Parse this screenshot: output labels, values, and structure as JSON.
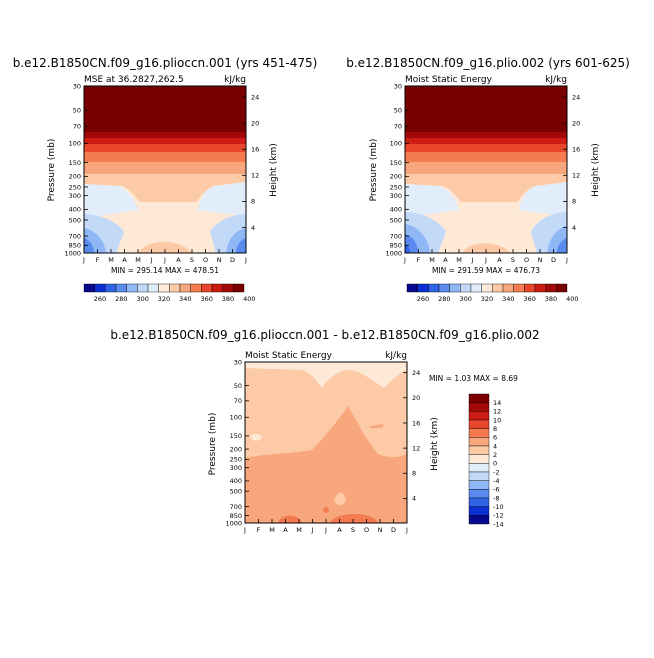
{
  "chart_data": [
    {
      "type": "heatmap",
      "title": "b.e12.B1850CN.f09_g16.plioccn.001 (yrs 451-475)",
      "subtitle_left": "MSE at 36.2827,262.5",
      "subtitle_right": "kJ/kg",
      "ylabel": "Pressure (mb)",
      "ylabel_right": "Height (km)",
      "x_ticklabels": [
        "J",
        "F",
        "M",
        "A",
        "M",
        "J",
        "J",
        "A",
        "S",
        "O",
        "N",
        "D",
        "J"
      ],
      "y_ticklabels": [
        "30",
        "50",
        "70",
        "100",
        "150",
        "200",
        "250",
        "300",
        "400",
        "500",
        "700",
        "850",
        "1000"
      ],
      "y_right_ticklabels": [
        "24",
        "20",
        "16",
        "12",
        "8",
        "4"
      ],
      "stats_text": "MIN = 295.14 MAX = 478.51",
      "colorbar_labels": [
        "260",
        "280",
        "300",
        "320",
        "340",
        "360",
        "380",
        "400"
      ],
      "colors": [
        "#08088a",
        "#0c2fd4",
        "#2f63e8",
        "#5a8cf0",
        "#8fb6f5",
        "#c2d9f8",
        "#e2edfb",
        "#fde9d6",
        "#fccaa6",
        "#f8a67c",
        "#f47a50",
        "#e9472b",
        "#cc1c13",
        "#a10807",
        "#7a0000"
      ]
    },
    {
      "type": "heatmap",
      "title": "b.e12.B1850CN.f09_g16.plio.002 (yrs 601-625)",
      "subtitle_left": "Moist Static Energy",
      "subtitle_right": "kJ/kg",
      "ylabel": "Pressure (mb)",
      "ylabel_right": "Height (km)",
      "x_ticklabels": [
        "J",
        "F",
        "M",
        "A",
        "M",
        "J",
        "J",
        "A",
        "S",
        "O",
        "N",
        "D",
        "J"
      ],
      "y_ticklabels": [
        "30",
        "50",
        "70",
        "100",
        "150",
        "200",
        "250",
        "300",
        "400",
        "500",
        "700",
        "850",
        "1000"
      ],
      "y_right_ticklabels": [
        "24",
        "20",
        "16",
        "12",
        "8",
        "4"
      ],
      "stats_text": "MIN = 291.59 MAX = 476.73",
      "colorbar_labels": [
        "260",
        "280",
        "300",
        "320",
        "340",
        "360",
        "380",
        "400"
      ]
    },
    {
      "type": "heatmap",
      "title": "b.e12.B1850CN.f09_g16.plioccn.001 - b.e12.B1850CN.f09_g16.plio.002",
      "subtitle_left": "Moist Static Energy",
      "subtitle_right": "kJ/kg",
      "ylabel": "Pressure (mb)",
      "ylabel_right": "Height (km)",
      "x_ticklabels": [
        "J",
        "F",
        "M",
        "A",
        "M",
        "J",
        "J",
        "A",
        "S",
        "O",
        "N",
        "D",
        "J"
      ],
      "y_ticklabels": [
        "30",
        "50",
        "70",
        "100",
        "150",
        "200",
        "250",
        "300",
        "400",
        "500",
        "700",
        "850",
        "1000"
      ],
      "y_right_ticklabels": [
        "24",
        "20",
        "16",
        "12",
        "8",
        "4"
      ],
      "stats_text": "MIN =     1.03 MAX =     8.69",
      "colorbar_labels": [
        "14",
        "12",
        "10",
        "8",
        "6",
        "4",
        "2",
        "0",
        "-2",
        "-4",
        "-6",
        "-8",
        "-10",
        "-12",
        "-14"
      ],
      "colors": [
        "#7a0000",
        "#a10807",
        "#cc1c13",
        "#e9472b",
        "#f47a50",
        "#f8a67c",
        "#fccaa6",
        "#fde9d6",
        "#e2edfb",
        "#c2d9f8",
        "#8fb6f5",
        "#5a8cf0",
        "#2f63e8",
        "#0c2fd4",
        "#08088a"
      ]
    }
  ]
}
